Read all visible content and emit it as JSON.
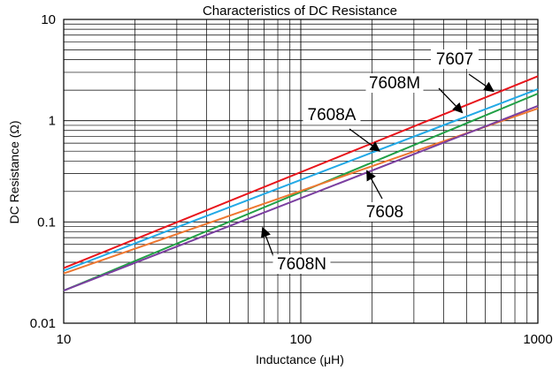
{
  "chart_data": {
    "type": "line",
    "title": "Characteristics of DC Resistance",
    "xlabel": "Inductance (μH)",
    "ylabel": "DC Resistance (Ω)",
    "x_scale": "log",
    "y_scale": "log",
    "xlim": [
      10,
      1000
    ],
    "ylim": [
      0.01,
      10
    ],
    "x_tick_labels": [
      "10",
      "100",
      "1000"
    ],
    "y_tick_labels": [
      "0.01",
      "0.1",
      "1",
      "10"
    ],
    "grid": true,
    "series": [
      {
        "name": "7607",
        "color": "#e8141b",
        "x": [
          10,
          1000
        ],
        "y": [
          0.035,
          2.75
        ]
      },
      {
        "name": "7608M",
        "color": "#22a9e6",
        "x": [
          10,
          1000
        ],
        "y": [
          0.033,
          2.05
        ]
      },
      {
        "name": "7608A",
        "color": "#21a046",
        "x": [
          10,
          1000
        ],
        "y": [
          0.021,
          1.85
        ]
      },
      {
        "name": "7608",
        "color": "#ee7730",
        "x": [
          10,
          1000
        ],
        "y": [
          0.031,
          1.32
        ]
      },
      {
        "name": "7608N",
        "color": "#7b3fa0",
        "x": [
          10,
          1000
        ],
        "y": [
          0.021,
          1.4
        ]
      }
    ],
    "annotations": [
      {
        "text": "7607",
        "target_series": "7607",
        "arrow_to": [
          650,
          1.95
        ]
      },
      {
        "text": "7608M",
        "target_series": "7608M",
        "arrow_to": [
          480,
          1.2
        ]
      },
      {
        "text": "7608A",
        "target_series": "7608A",
        "arrow_to": [
          215,
          0.5
        ]
      },
      {
        "text": "7608",
        "target_series": "7608",
        "arrow_to": [
          190,
          0.32
        ]
      },
      {
        "text": "7608N",
        "target_series": "7608N",
        "arrow_to": [
          69,
          0.088
        ]
      }
    ]
  }
}
